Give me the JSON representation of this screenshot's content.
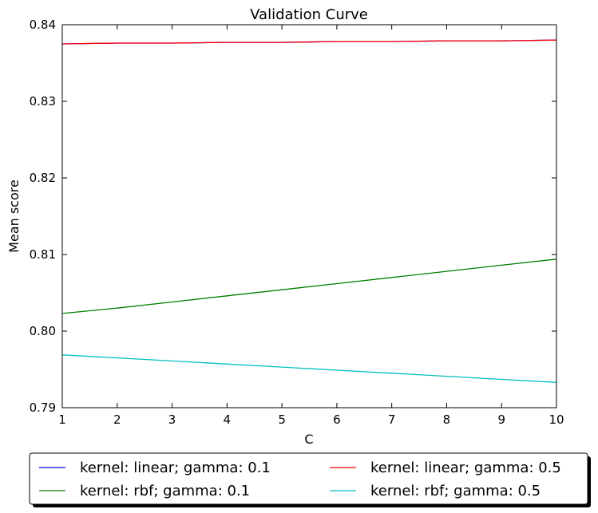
{
  "chart_data": {
    "type": "line",
    "title": "Validation Curve",
    "xlabel": "C",
    "ylabel": "Mean score",
    "xlim": [
      1,
      10
    ],
    "ylim": [
      0.79,
      0.84
    ],
    "xticks": [
      1,
      2,
      3,
      4,
      5,
      6,
      7,
      8,
      9,
      10
    ],
    "xtick_labels": [
      "1",
      "2",
      "3",
      "4",
      "5",
      "6",
      "7",
      "8",
      "9",
      "10"
    ],
    "yticks": [
      0.79,
      0.8,
      0.81,
      0.82,
      0.83,
      0.84
    ],
    "ytick_labels": [
      "0.79",
      "0.80",
      "0.81",
      "0.82",
      "0.83",
      "0.84"
    ],
    "grid": false,
    "legend_position": "below plot, two columns",
    "x": [
      1,
      2,
      3,
      4,
      5,
      6,
      7,
      8,
      9,
      10
    ],
    "series": [
      {
        "name": "kernel: linear; gamma: 0.1",
        "color": "#0000ff",
        "values": [
          0.8375,
          0.8376,
          0.8376,
          0.8377,
          0.8377,
          0.8378,
          0.8378,
          0.8379,
          0.8379,
          0.838
        ]
      },
      {
        "name": "kernel: linear; gamma: 0.5",
        "color": "#ff0000",
        "values": [
          0.8375,
          0.8376,
          0.8376,
          0.8377,
          0.8377,
          0.8378,
          0.8378,
          0.8379,
          0.8379,
          0.838
        ]
      },
      {
        "name": "kernel: rbf; gamma: 0.1",
        "color": "#008000",
        "values": [
          0.8023,
          0.803,
          0.8038,
          0.8046,
          0.8054,
          0.8062,
          0.807,
          0.8078,
          0.8086,
          0.8094
        ]
      },
      {
        "name": "kernel: rbf; gamma: 0.5",
        "color": "#00bfbf",
        "values": [
          0.7969,
          0.7965,
          0.7961,
          0.7957,
          0.7953,
          0.7949,
          0.7945,
          0.7941,
          0.7937,
          0.7933
        ]
      }
    ]
  }
}
